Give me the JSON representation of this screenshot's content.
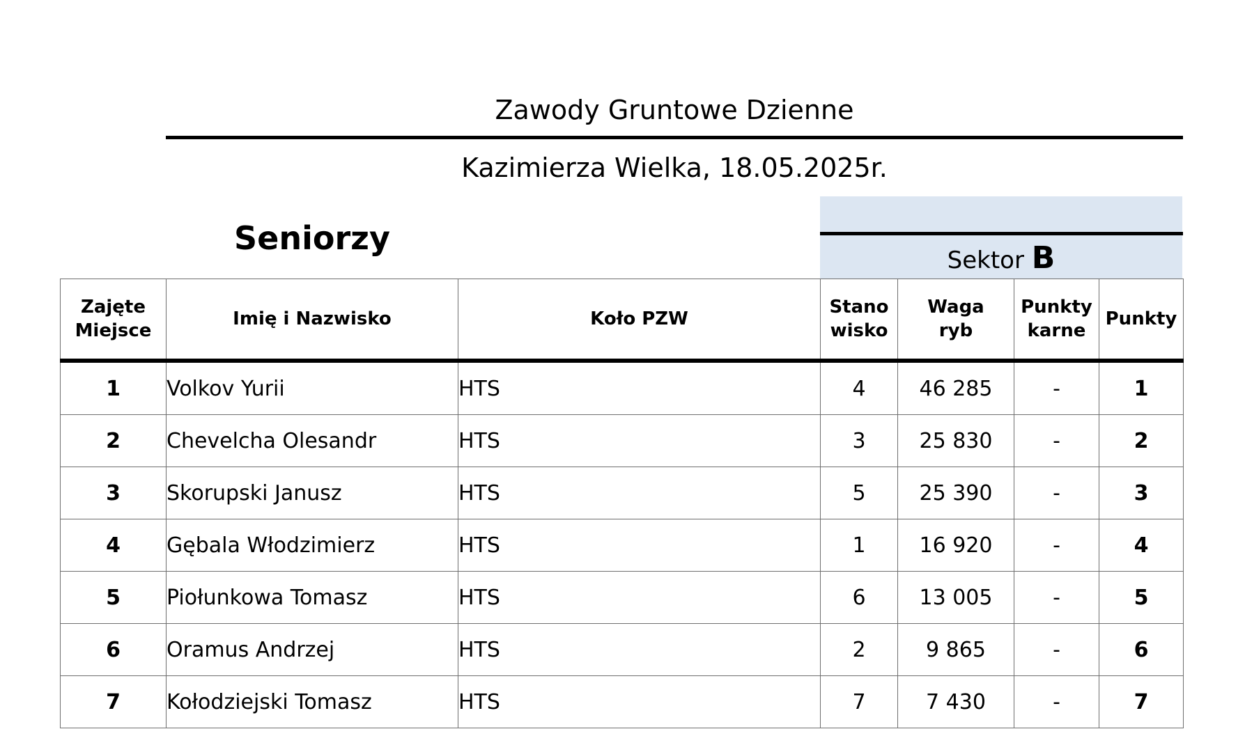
{
  "header": {
    "title": "Zawody Gruntowe Dzienne",
    "subtitle": "Kazimierza Wielka, 18.05.2025r.",
    "category": "Seniorzy"
  },
  "sector": {
    "label": "Sektor",
    "letter": "B",
    "band_color": "#dce6f2"
  },
  "table": {
    "columns": {
      "place": [
        "Zajęte",
        "Miejsce"
      ],
      "name": "Imię i Nazwisko",
      "club": "Koło PZW",
      "stand": [
        "Stano",
        "wisko"
      ],
      "weight": [
        "Waga",
        "ryb"
      ],
      "penalty": [
        "Punkty",
        "karne"
      ],
      "points": "Punkty"
    },
    "rows": [
      {
        "place": "1",
        "name": "Volkov Yurii",
        "club": "HTS",
        "stand": "4",
        "weight": "46 285",
        "penalty": "-",
        "points": "1"
      },
      {
        "place": "2",
        "name": "Chevelcha Olesandr",
        "club": "HTS",
        "stand": "3",
        "weight": "25 830",
        "penalty": "-",
        "points": "2"
      },
      {
        "place": "3",
        "name": "Skorupski Janusz",
        "club": "HTS",
        "stand": "5",
        "weight": "25 390",
        "penalty": "-",
        "points": "3"
      },
      {
        "place": "4",
        "name": "Gębala Włodzimierz",
        "club": "HTS",
        "stand": "1",
        "weight": "16 920",
        "penalty": "-",
        "points": "4"
      },
      {
        "place": "5",
        "name": "Piołunkowa Tomasz",
        "club": "HTS",
        "stand": "6",
        "weight": "13 005",
        "penalty": "-",
        "points": "5"
      },
      {
        "place": "6",
        "name": "Oramus Andrzej",
        "club": "HTS",
        "stand": "2",
        "weight": "9 865",
        "penalty": "-",
        "points": "6"
      },
      {
        "place": "7",
        "name": "Kołodziejski Tomasz",
        "club": "HTS",
        "stand": "7",
        "weight": "7 430",
        "penalty": "-",
        "points": "7"
      }
    ]
  }
}
